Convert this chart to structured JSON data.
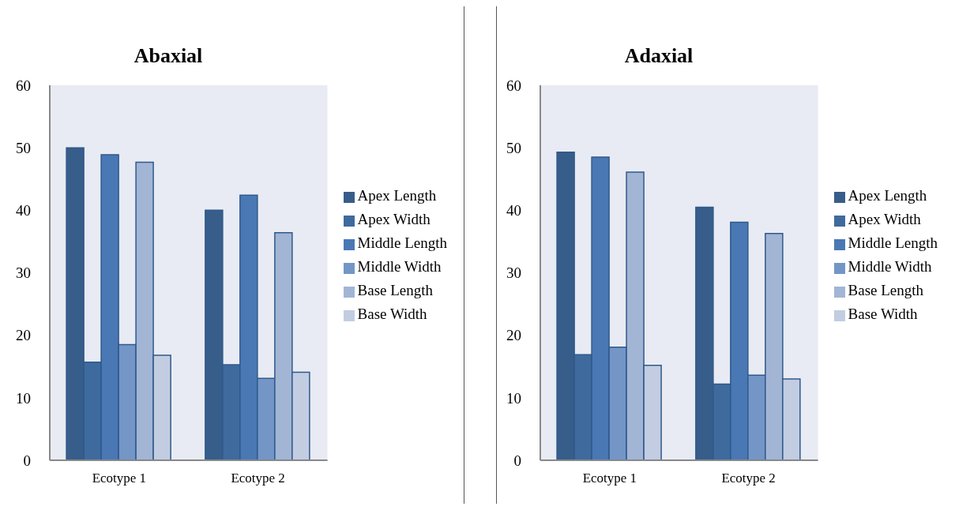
{
  "chart_data": [
    {
      "type": "bar",
      "title": "Abaxial",
      "categories": [
        "Ecotype 1",
        "Ecotype 2"
      ],
      "ylim": [
        0,
        60
      ],
      "yticks": [
        0,
        10,
        20,
        30,
        40,
        50,
        60
      ],
      "legend": "right",
      "series": [
        {
          "name": "Apex Length",
          "color": "#375d8a",
          "values": [
            50,
            40
          ]
        },
        {
          "name": "Apex Width",
          "color": "#3f6a9e",
          "values": [
            15.7,
            15.3
          ]
        },
        {
          "name": "Middle Length",
          "color": "#4a78b4",
          "values": [
            48.9,
            42.4
          ]
        },
        {
          "name": "Middle Width",
          "color": "#7396c6",
          "values": [
            18.5,
            13.1
          ]
        },
        {
          "name": "Base Length",
          "color": "#a2b5d5",
          "values": [
            47.7,
            36.4
          ]
        },
        {
          "name": "Base Width",
          "color": "#c2cde2",
          "values": [
            16.8,
            14.1
          ]
        }
      ]
    },
    {
      "type": "bar",
      "title": "Adaxial",
      "categories": [
        "Ecotype 1",
        "Ecotype 2"
      ],
      "ylim": [
        0,
        60
      ],
      "yticks": [
        0,
        10,
        20,
        30,
        40,
        50,
        60
      ],
      "legend": "right",
      "series": [
        {
          "name": "Apex Length",
          "color": "#375d8a",
          "values": [
            49.3,
            40.5
          ]
        },
        {
          "name": "Apex Width",
          "color": "#3f6a9e",
          "values": [
            16.9,
            12.2
          ]
        },
        {
          "name": "Middle Length",
          "color": "#4a78b4",
          "values": [
            48.5,
            38.1
          ]
        },
        {
          "name": "Middle Width",
          "color": "#7396c6",
          "values": [
            18.1,
            13.6
          ]
        },
        {
          "name": "Base Length",
          "color": "#a2b5d5",
          "values": [
            46.1,
            36.3
          ]
        },
        {
          "name": "Base Width",
          "color": "#c2cde2",
          "values": [
            15.2,
            13.0
          ]
        }
      ]
    }
  ]
}
